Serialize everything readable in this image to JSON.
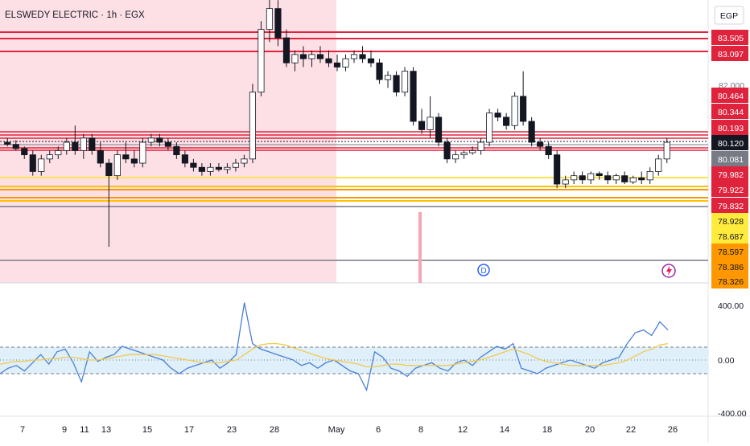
{
  "header": {
    "symbol_line": "ELSWEDY ELECTRIC · 1h · EGX",
    "currency": "EGP"
  },
  "chart_data": [
    {
      "type": "candlestick",
      "title": "ELSWEDY ELECTRIC · 1h · EGX",
      "price_axis_ticks": [
        "82.000"
      ],
      "price_labels": [
        {
          "text": "83.505",
          "value": 83.505,
          "color": "#e0233d"
        },
        {
          "text": "83.097",
          "value": 83.097,
          "color": "#e0233d"
        },
        {
          "text": "80.464",
          "value": 80.464,
          "color": "#e0233d"
        },
        {
          "text": "80.344",
          "value": 80.344,
          "color": "#e0233d"
        },
        {
          "text": "80.193",
          "value": 80.193,
          "color": "#e0233d"
        },
        {
          "text": "80.120",
          "value": 80.12,
          "color": "#131722"
        },
        {
          "text": "80.081",
          "value": 80.081,
          "color": "#787b86"
        },
        {
          "text": "79.982",
          "value": 79.982,
          "color": "#e0233d"
        },
        {
          "text": "79.922",
          "value": 79.922,
          "color": "#e0233d"
        },
        {
          "text": "79.832",
          "value": 79.832,
          "color": "#e0233d"
        },
        {
          "text": "78.928",
          "value": 78.928,
          "color": "#ffeb3b"
        },
        {
          "text": "78.687",
          "value": 78.687,
          "color": "#ffeb3b"
        },
        {
          "text": "78.597",
          "value": 78.597,
          "color": "#ff9800"
        },
        {
          "text": "78.386",
          "value": 78.386,
          "color": "#ff9800"
        },
        {
          "text": "78.326",
          "value": 78.326,
          "color": "#ff9800"
        }
      ],
      "x_ticks": [
        "7",
        "9",
        "11",
        "13",
        "15",
        "17",
        "23",
        "28",
        "May",
        "6",
        "8",
        "12",
        "14",
        "18",
        "20",
        "22",
        "26"
      ],
      "ohlc": [
        [
          80.1,
          80.2,
          80.0,
          80.05
        ],
        [
          80.05,
          80.15,
          79.9,
          79.95
        ],
        [
          79.95,
          80.0,
          79.7,
          79.8
        ],
        [
          79.8,
          79.9,
          79.3,
          79.4
        ],
        [
          79.4,
          79.8,
          79.3,
          79.7
        ],
        [
          79.7,
          79.9,
          79.6,
          79.8
        ],
        [
          79.8,
          80.0,
          79.7,
          79.9
        ],
        [
          79.9,
          80.2,
          79.8,
          80.1
        ],
        [
          80.1,
          80.5,
          79.8,
          79.9
        ],
        [
          79.9,
          80.3,
          79.7,
          80.2
        ],
        [
          80.2,
          80.3,
          79.8,
          79.9
        ],
        [
          79.9,
          80.1,
          79.5,
          79.6
        ],
        [
          79.6,
          79.7,
          77.6,
          79.3
        ],
        [
          79.3,
          79.9,
          79.2,
          79.8
        ],
        [
          79.8,
          80.1,
          79.6,
          79.7
        ],
        [
          79.7,
          79.9,
          79.5,
          79.6
        ],
        [
          79.6,
          80.2,
          79.5,
          80.1
        ],
        [
          80.1,
          80.3,
          80.0,
          80.2
        ],
        [
          80.2,
          80.3,
          80.0,
          80.1
        ],
        [
          80.1,
          80.2,
          79.9,
          80.0
        ],
        [
          80.0,
          80.1,
          79.7,
          79.8
        ],
        [
          79.8,
          79.9,
          79.5,
          79.6
        ],
        [
          79.6,
          79.7,
          79.4,
          79.5
        ],
        [
          79.5,
          79.6,
          79.3,
          79.4
        ],
        [
          79.4,
          79.6,
          79.3,
          79.5
        ],
        [
          79.5,
          79.6,
          79.4,
          79.45
        ],
        [
          79.45,
          79.6,
          79.35,
          79.5
        ],
        [
          79.5,
          79.7,
          79.4,
          79.6
        ],
        [
          79.6,
          79.8,
          79.5,
          79.7
        ],
        [
          79.7,
          81.5,
          79.6,
          81.3
        ],
        [
          81.3,
          83.0,
          81.2,
          82.8
        ],
        [
          82.8,
          83.6,
          82.5,
          83.3
        ],
        [
          83.3,
          83.5,
          82.4,
          82.6
        ],
        [
          82.6,
          82.8,
          81.9,
          82.0
        ],
        [
          82.0,
          82.3,
          81.8,
          82.2
        ],
        [
          82.2,
          82.4,
          81.9,
          82.1
        ],
        [
          82.1,
          82.3,
          81.9,
          82.2
        ],
        [
          82.2,
          82.4,
          82.0,
          82.1
        ],
        [
          82.1,
          82.3,
          81.9,
          82.0
        ],
        [
          82.0,
          82.2,
          81.8,
          81.9
        ],
        [
          81.9,
          82.2,
          81.8,
          82.1
        ],
        [
          82.1,
          82.3,
          82.0,
          82.2
        ],
        [
          82.2,
          82.4,
          82.0,
          82.1
        ],
        [
          82.1,
          82.3,
          81.9,
          82.0
        ],
        [
          82.0,
          82.1,
          81.5,
          81.6
        ],
        [
          81.6,
          81.8,
          81.4,
          81.7
        ],
        [
          81.7,
          81.8,
          81.2,
          81.3
        ],
        [
          81.3,
          81.9,
          81.2,
          81.8
        ],
        [
          81.8,
          81.9,
          80.5,
          80.6
        ],
        [
          80.6,
          80.9,
          80.3,
          80.4
        ],
        [
          80.4,
          81.2,
          80.2,
          80.7
        ],
        [
          80.7,
          80.8,
          80.0,
          80.1
        ],
        [
          80.1,
          80.2,
          79.6,
          79.7
        ],
        [
          79.7,
          79.9,
          79.6,
          79.8
        ],
        [
          79.8,
          79.9,
          79.7,
          79.85
        ],
        [
          79.85,
          80.0,
          79.8,
          79.9
        ],
        [
          79.9,
          80.2,
          79.8,
          80.1
        ],
        [
          80.1,
          80.9,
          80.0,
          80.8
        ],
        [
          80.8,
          80.9,
          80.6,
          80.7
        ],
        [
          80.7,
          80.8,
          80.4,
          80.5
        ],
        [
          80.5,
          81.3,
          80.4,
          81.2
        ],
        [
          81.2,
          81.8,
          80.5,
          80.6
        ],
        [
          80.6,
          80.7,
          80.0,
          80.1
        ],
        [
          80.1,
          80.2,
          79.9,
          80.0
        ],
        [
          80.0,
          80.1,
          79.7,
          79.8
        ],
        [
          79.8,
          79.9,
          79.0,
          79.1
        ],
        [
          79.1,
          79.3,
          79.0,
          79.2
        ],
        [
          79.2,
          79.4,
          79.1,
          79.3
        ],
        [
          79.3,
          79.4,
          79.1,
          79.2
        ],
        [
          79.2,
          79.4,
          79.1,
          79.35
        ],
        [
          79.35,
          79.4,
          79.2,
          79.3
        ],
        [
          79.3,
          79.4,
          79.1,
          79.2
        ],
        [
          79.2,
          79.35,
          79.1,
          79.3
        ],
        [
          79.3,
          79.4,
          79.1,
          79.15
        ],
        [
          79.15,
          79.3,
          79.1,
          79.25
        ],
        [
          79.25,
          79.4,
          79.1,
          79.2
        ],
        [
          79.2,
          79.5,
          79.1,
          79.4
        ],
        [
          79.4,
          79.8,
          79.3,
          79.7
        ],
        [
          79.7,
          80.2,
          79.6,
          80.1
        ]
      ]
    },
    {
      "type": "line",
      "y_ticks": [
        "400.00",
        "0.00",
        "-400.00"
      ],
      "y_range": [
        -400,
        400
      ],
      "bands": [
        -100,
        100
      ],
      "series": [
        {
          "color": "#4b7fd6",
          "values": [
            -100,
            -60,
            -40,
            -80,
            -20,
            40,
            -30,
            60,
            80,
            -20,
            -160,
            60,
            -10,
            20,
            40,
            100,
            80,
            60,
            40,
            20,
            0,
            -60,
            -100,
            -60,
            -40,
            -20,
            0,
            -60,
            -20,
            40,
            420,
            120,
            80,
            60,
            40,
            20,
            0,
            -40,
            -20,
            -60,
            -20,
            0,
            -40,
            -80,
            -100,
            -220,
            60,
            20,
            -60,
            -80,
            -120,
            -60,
            -40,
            -20,
            -60,
            -80,
            -20,
            0,
            -40,
            20,
            60,
            100,
            80,
            120,
            -60,
            -80,
            -100,
            -60,
            -40,
            -20,
            0,
            -20,
            -40,
            -60,
            -20,
            0,
            20,
            120,
            200,
            220,
            180,
            280,
            220
          ]
        },
        {
          "color": "#f2c94c",
          "values": [
            -30,
            -20,
            -10,
            -10,
            0,
            0,
            10,
            10,
            20,
            20,
            10,
            0,
            0,
            10,
            20,
            30,
            40,
            40,
            40,
            40,
            30,
            20,
            10,
            0,
            -10,
            -20,
            -20,
            -20,
            -10,
            0,
            40,
            80,
            110,
            120,
            120,
            110,
            90,
            70,
            50,
            30,
            10,
            0,
            -10,
            -20,
            -30,
            -50,
            -50,
            -40,
            -30,
            -30,
            -40,
            -40,
            -40,
            -40,
            -40,
            -40,
            -30,
            -20,
            -10,
            0,
            20,
            40,
            60,
            80,
            60,
            40,
            10,
            -10,
            -20,
            -30,
            -40,
            -40,
            -40,
            -40,
            -40,
            -30,
            -20,
            0,
            30,
            60,
            80,
            110,
            120
          ]
        }
      ]
    }
  ]
}
